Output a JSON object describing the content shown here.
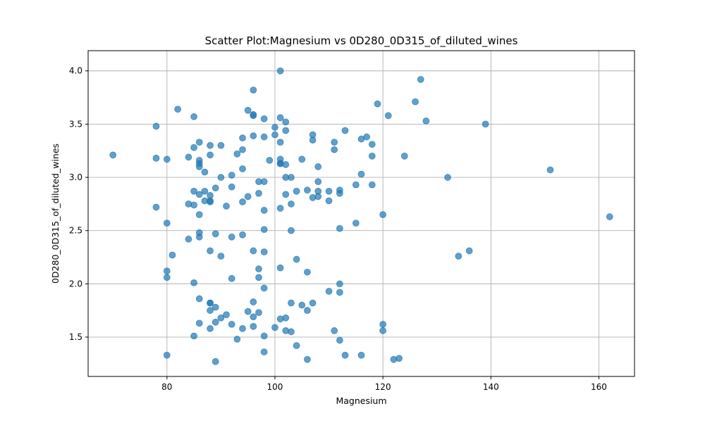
{
  "chart_data": {
    "type": "scatter",
    "title": "Scatter Plot:Magnesium vs 0D280_0D315_of_diluted_wines",
    "xlabel": "Magnesium",
    "ylabel": "0D280_0D315_of_diluted_wines",
    "xlim": [
      65.4,
      166.6
    ],
    "ylim": [
      1.13,
      4.19
    ],
    "xticks": [
      80,
      100,
      120,
      140,
      160
    ],
    "yticks": [
      1.5,
      2.0,
      2.5,
      3.0,
      3.5,
      4.0
    ],
    "xtick_labels": [
      "80",
      "100",
      "120",
      "140",
      "160"
    ],
    "ytick_labels": [
      "1.5",
      "2.0",
      "2.5",
      "3.0",
      "3.5",
      "4.0"
    ],
    "grid": true,
    "color": "#1f77b4",
    "points": [
      [
        70,
        3.21
      ],
      [
        78,
        3.48
      ],
      [
        78,
        3.18
      ],
      [
        78,
        2.72
      ],
      [
        80,
        3.17
      ],
      [
        80,
        2.57
      ],
      [
        80,
        2.12
      ],
      [
        80,
        2.06
      ],
      [
        80,
        1.33
      ],
      [
        81,
        2.27
      ],
      [
        82,
        3.64
      ],
      [
        84,
        3.19
      ],
      [
        84,
        2.75
      ],
      [
        84,
        2.42
      ],
      [
        85,
        3.57
      ],
      [
        85,
        3.28
      ],
      [
        85,
        2.87
      ],
      [
        85,
        2.74
      ],
      [
        85,
        2.01
      ],
      [
        85,
        1.51
      ],
      [
        86,
        3.33
      ],
      [
        86,
        3.16
      ],
      [
        86,
        3.13
      ],
      [
        86,
        3.1
      ],
      [
        86,
        2.84
      ],
      [
        86,
        2.65
      ],
      [
        86,
        2.48
      ],
      [
        86,
        2.44
      ],
      [
        86,
        1.86
      ],
      [
        86,
        1.63
      ],
      [
        87,
        3.05
      ],
      [
        87,
        2.87
      ],
      [
        87,
        2.78
      ],
      [
        88,
        3.3
      ],
      [
        88,
        3.21
      ],
      [
        88,
        2.83
      ],
      [
        88,
        2.78
      ],
      [
        88,
        2.77
      ],
      [
        88,
        2.31
      ],
      [
        88,
        1.82
      ],
      [
        88,
        1.82
      ],
      [
        88,
        1.75
      ],
      [
        88,
        1.58
      ],
      [
        89,
        2.9
      ],
      [
        89,
        2.47
      ],
      [
        89,
        1.78
      ],
      [
        89,
        1.64
      ],
      [
        89,
        1.27
      ],
      [
        90,
        3.3
      ],
      [
        90,
        3.0
      ],
      [
        90,
        2.26
      ],
      [
        90,
        1.68
      ],
      [
        91,
        2.73
      ],
      [
        91,
        1.71
      ],
      [
        92,
        3.02
      ],
      [
        92,
        2.91
      ],
      [
        92,
        2.44
      ],
      [
        92,
        2.05
      ],
      [
        92,
        1.62
      ],
      [
        93,
        3.22
      ],
      [
        93,
        1.48
      ],
      [
        94,
        3.37
      ],
      [
        94,
        3.26
      ],
      [
        94,
        3.08
      ],
      [
        94,
        2.77
      ],
      [
        94,
        2.46
      ],
      [
        94,
        1.58
      ],
      [
        95,
        3.63
      ],
      [
        95,
        2.82
      ],
      [
        95,
        1.74
      ],
      [
        96,
        3.82
      ],
      [
        96,
        3.59
      ],
      [
        96,
        3.58
      ],
      [
        96,
        3.39
      ],
      [
        96,
        2.31
      ],
      [
        96,
        1.83
      ],
      [
        96,
        1.69
      ],
      [
        96,
        1.6
      ],
      [
        97,
        2.96
      ],
      [
        97,
        2.85
      ],
      [
        97,
        2.14
      ],
      [
        97,
        2.06
      ],
      [
        97,
        1.73
      ],
      [
        98,
        3.55
      ],
      [
        98,
        3.38
      ],
      [
        98,
        2.96
      ],
      [
        98,
        2.69
      ],
      [
        98,
        2.51
      ],
      [
        98,
        2.3
      ],
      [
        98,
        1.96
      ],
      [
        98,
        1.51
      ],
      [
        98,
        1.36
      ],
      [
        99,
        3.16
      ],
      [
        100,
        3.47
      ],
      [
        100,
        3.4
      ],
      [
        100,
        1.59
      ],
      [
        101,
        4.0
      ],
      [
        101,
        3.56
      ],
      [
        101,
        3.33
      ],
      [
        101,
        3.17
      ],
      [
        101,
        3.13
      ],
      [
        101,
        3.13
      ],
      [
        101,
        2.71
      ],
      [
        101,
        2.15
      ],
      [
        101,
        1.67
      ],
      [
        102,
        3.52
      ],
      [
        102,
        3.44
      ],
      [
        102,
        3.12
      ],
      [
        102,
        3.0
      ],
      [
        102,
        2.84
      ],
      [
        102,
        1.68
      ],
      [
        102,
        1.56
      ],
      [
        103,
        3.0
      ],
      [
        103,
        2.75
      ],
      [
        103,
        2.5
      ],
      [
        103,
        1.82
      ],
      [
        103,
        1.55
      ],
      [
        104,
        2.87
      ],
      [
        104,
        2.23
      ],
      [
        104,
        1.42
      ],
      [
        105,
        3.17
      ],
      [
        105,
        1.8
      ],
      [
        106,
        2.88
      ],
      [
        106,
        2.11
      ],
      [
        106,
        1.75
      ],
      [
        106,
        1.29
      ],
      [
        107,
        3.4
      ],
      [
        107,
        3.35
      ],
      [
        107,
        2.81
      ],
      [
        107,
        1.82
      ],
      [
        108,
        3.1
      ],
      [
        108,
        2.96
      ],
      [
        108,
        2.87
      ],
      [
        108,
        2.82
      ],
      [
        110,
        2.87
      ],
      [
        110,
        2.78
      ],
      [
        110,
        1.93
      ],
      [
        111,
        3.33
      ],
      [
        111,
        3.26
      ],
      [
        111,
        1.56
      ],
      [
        112,
        2.88
      ],
      [
        112,
        2.85
      ],
      [
        112,
        2.52
      ],
      [
        112,
        2.0
      ],
      [
        112,
        1.92
      ],
      [
        112,
        1.47
      ],
      [
        113,
        3.44
      ],
      [
        113,
        1.33
      ],
      [
        115,
        2.93
      ],
      [
        115,
        2.57
      ],
      [
        116,
        3.36
      ],
      [
        116,
        3.03
      ],
      [
        116,
        1.33
      ],
      [
        117,
        3.38
      ],
      [
        118,
        3.31
      ],
      [
        118,
        3.2
      ],
      [
        118,
        2.93
      ],
      [
        119,
        3.69
      ],
      [
        120,
        2.65
      ],
      [
        120,
        1.62
      ],
      [
        120,
        1.56
      ],
      [
        121,
        3.58
      ],
      [
        122,
        1.29
      ],
      [
        123,
        1.3
      ],
      [
        124,
        3.2
      ],
      [
        126,
        3.71
      ],
      [
        127,
        3.92
      ],
      [
        128,
        3.53
      ],
      [
        132,
        3.0
      ],
      [
        134,
        2.26
      ],
      [
        136,
        2.31
      ],
      [
        139,
        3.5
      ],
      [
        151,
        3.07
      ],
      [
        162,
        2.63
      ]
    ]
  }
}
